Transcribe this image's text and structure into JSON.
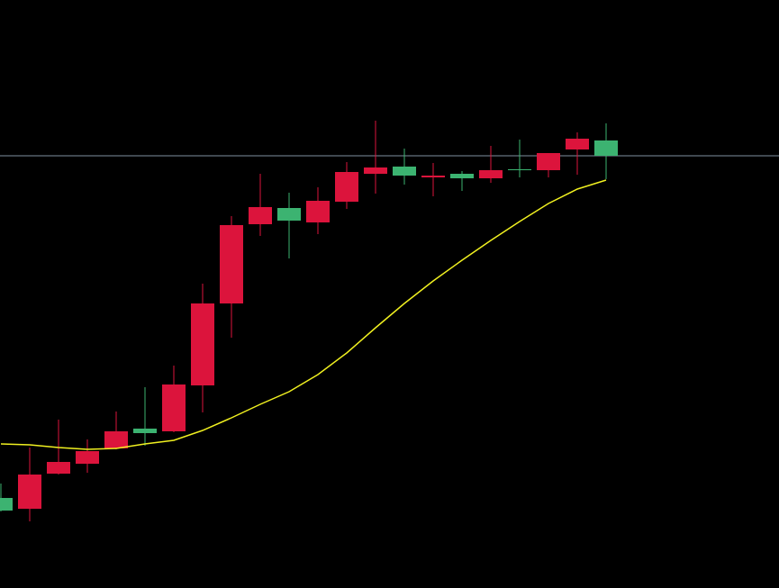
{
  "chart_data": {
    "type": "candlestick",
    "background": "#000000",
    "up_color": "#dc143c",
    "down_color": "#3cb371",
    "ylim": [
      0,
      653
    ],
    "open": [
      100,
      88,
      127,
      138,
      155,
      177,
      174,
      225,
      316,
      404,
      422,
      406,
      429,
      460,
      468,
      456,
      460,
      455,
      465,
      464,
      487,
      497
    ],
    "high": [
      116,
      156,
      187,
      165,
      196,
      223,
      247,
      338,
      413,
      460,
      439,
      445,
      473,
      519,
      488,
      472,
      463,
      491,
      498,
      483,
      506,
      516
    ],
    "low": [
      85,
      74,
      126,
      128,
      154,
      158,
      173,
      195,
      278,
      391,
      366,
      393,
      421,
      438,
      448,
      435,
      441,
      450,
      456,
      456,
      459,
      454
    ],
    "close": [
      86,
      126,
      140,
      152,
      174,
      172,
      226,
      316,
      403,
      423,
      408,
      430,
      462,
      467,
      458,
      458,
      455,
      464,
      464,
      483,
      499,
      480
    ],
    "ma": {
      "color": "#f0f020",
      "values": [
        160,
        159,
        156,
        154,
        155,
        160,
        164,
        175,
        189,
        204,
        218,
        237,
        261,
        289,
        316,
        341,
        364,
        386,
        407,
        427,
        443,
        453
      ]
    },
    "hline": {
      "value": 480,
      "color": "#8090a0"
    }
  }
}
